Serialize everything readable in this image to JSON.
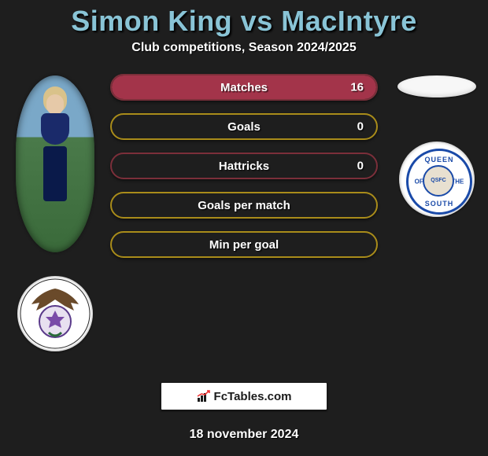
{
  "title": "Simon King vs MacIntyre",
  "title_color": "#89c4d6",
  "subtitle": "Club competitions, Season 2024/2025",
  "background_color": "#1e1e1e",
  "left_player": {
    "name": "Simon King",
    "crest_team": "Inverness"
  },
  "right_player": {
    "name": "MacIntyre",
    "crest_team": "Queen of the South",
    "crest_text_top": "QUEEN",
    "crest_text_bottom": "SOUTH",
    "crest_text_left": "OF",
    "crest_text_right": "THE",
    "crest_center": "QSFC"
  },
  "bars": [
    {
      "label": "Matches",
      "value": "16",
      "fill_pct": 100,
      "border_color": "#7b2f3a",
      "fill_color": "#a3344a"
    },
    {
      "label": "Goals",
      "value": "0",
      "fill_pct": 0,
      "border_color": "#a98c1a",
      "fill_color": "#a98c1a"
    },
    {
      "label": "Hattricks",
      "value": "0",
      "fill_pct": 0,
      "border_color": "#7b2f3a",
      "fill_color": "#a3344a"
    },
    {
      "label": "Goals per match",
      "value": "",
      "fill_pct": 0,
      "border_color": "#a98c1a",
      "fill_color": "#a98c1a"
    },
    {
      "label": "Min per goal",
      "value": "",
      "fill_pct": 0,
      "border_color": "#a98c1a",
      "fill_color": "#a98c1a"
    }
  ],
  "bar_style": {
    "height": 30,
    "radius": 30,
    "label_fontsize": 15,
    "label_color": "#ffffff"
  },
  "brand": "FcTables.com",
  "footer_date": "18 november 2024"
}
